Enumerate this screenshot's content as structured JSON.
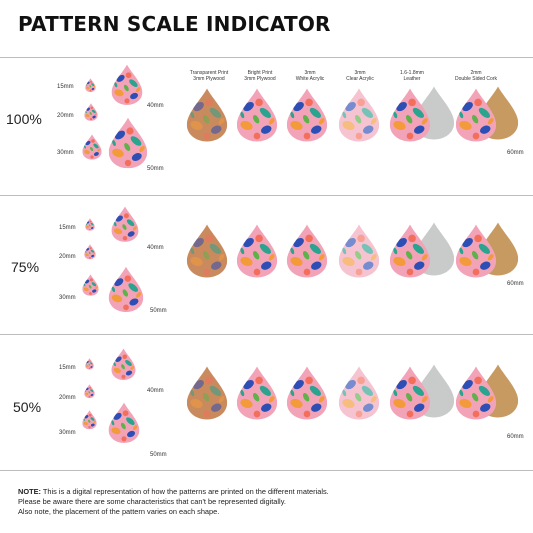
{
  "title": "PATTERN SCALE INDICATOR",
  "materials": [
    {
      "line1": "Transparent Print",
      "line2": "3mm Plywood"
    },
    {
      "line1": "Bright Print",
      "line2": "3mm Plywood"
    },
    {
      "line1": "3mm",
      "line2": "White Acrylic"
    },
    {
      "line1": "3mm",
      "line2": "Clear Acrylic"
    },
    {
      "line1": "1.6-1.8mm",
      "line2": "Leather"
    },
    {
      "line1": "2mm",
      "line2": "Double Sided Cork"
    }
  ],
  "sizes": {
    "s15": "15mm",
    "s20": "20mm",
    "s30": "30mm",
    "s40": "40mm",
    "s50": "50mm",
    "s60": "60mm"
  },
  "scales": [
    {
      "label": "100%"
    },
    {
      "label": "75%"
    },
    {
      "label": "50%"
    }
  ],
  "note": {
    "bold": "NOTE:",
    "line1": " This is a digital representation of how the patterns are printed on the different materials.",
    "line2": "Please be aware there are some characteristics that can't be represented digitally.",
    "line3": "Also note, the placement of the pattern varies on each shape."
  },
  "colors": {
    "pink": "#f2a3b8",
    "coral": "#f36f5c",
    "orange": "#f39a3a",
    "blue": "#2d4fb5",
    "teal": "#2aa38f",
    "green": "#5fb14a",
    "plywood": "#c98a5e",
    "leather": "#c9cbcb",
    "cork": "#c79a62"
  }
}
